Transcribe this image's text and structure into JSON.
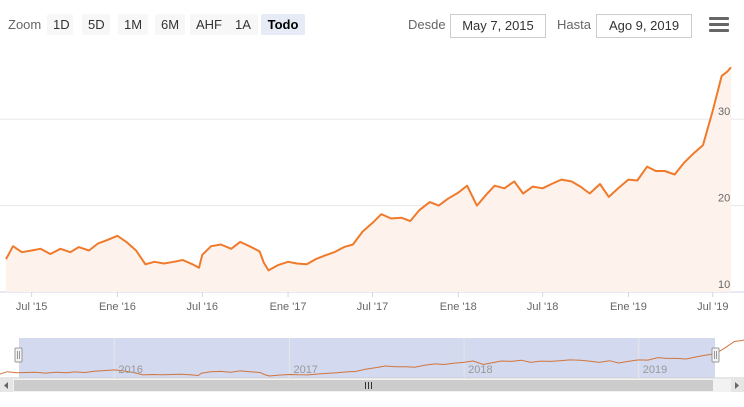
{
  "toolbar": {
    "zoom_label": "Zoom",
    "zoom_buttons": [
      "1D",
      "5D",
      "1M",
      "6M",
      "AHF",
      "1A",
      "Todo"
    ],
    "active_zoom": "Todo",
    "from_label": "Desde",
    "from_value": "May 7, 2015",
    "to_label": "Hasta",
    "to_value": "Ago 9, 2019",
    "menu_icon": "hamburger-menu-icon"
  },
  "colors": {
    "line": "#f07a2c",
    "area": "#fef3ec",
    "navigator_mask": "#d3d9ee",
    "navigator_line": "#d1753d",
    "grid": "#e6e6e6"
  },
  "chart_data": {
    "type": "line",
    "area_fill": true,
    "grid": true,
    "y_axis_side": "right",
    "ylim": [
      10,
      38
    ],
    "xlim": [
      "2015-05-07",
      "2019-08-09"
    ],
    "y_ticks": [
      "10",
      "20",
      "30"
    ],
    "x_ticks": [
      {
        "date": "2015-07-01",
        "label": "Jul '15"
      },
      {
        "date": "2016-01-01",
        "label": "Ene '16"
      },
      {
        "date": "2016-07-01",
        "label": "Jul '16"
      },
      {
        "date": "2017-01-01",
        "label": "Ene '17"
      },
      {
        "date": "2017-07-01",
        "label": "Jul '17"
      },
      {
        "date": "2018-01-01",
        "label": "Ene '18"
      },
      {
        "date": "2018-07-01",
        "label": "Jul '18"
      },
      {
        "date": "2019-01-01",
        "label": "Ene '19"
      },
      {
        "date": "2019-07-01",
        "label": "Jul '19"
      }
    ],
    "navigator_ticks": [
      {
        "date": "2016-01-01",
        "label": "2016"
      },
      {
        "date": "2017-01-01",
        "label": "2017"
      },
      {
        "date": "2018-01-01",
        "label": "2018"
      },
      {
        "date": "2019-01-01",
        "label": "2019"
      }
    ],
    "x": [
      "2015-05-07",
      "2015-05-22",
      "2015-06-10",
      "2015-07-01",
      "2015-07-20",
      "2015-08-10",
      "2015-09-01",
      "2015-09-22",
      "2015-10-10",
      "2015-11-01",
      "2015-11-20",
      "2015-12-10",
      "2016-01-01",
      "2016-01-20",
      "2016-02-10",
      "2016-03-01",
      "2016-03-20",
      "2016-04-10",
      "2016-05-01",
      "2016-05-20",
      "2016-06-10",
      "2016-06-24",
      "2016-07-01",
      "2016-07-20",
      "2016-08-10",
      "2016-09-01",
      "2016-09-20",
      "2016-10-10",
      "2016-11-01",
      "2016-11-10",
      "2016-11-20",
      "2016-12-10",
      "2017-01-01",
      "2017-01-20",
      "2017-02-10",
      "2017-03-01",
      "2017-03-20",
      "2017-04-10",
      "2017-05-01",
      "2017-05-20",
      "2017-06-10",
      "2017-07-01",
      "2017-07-20",
      "2017-08-10",
      "2017-09-01",
      "2017-09-20",
      "2017-10-10",
      "2017-11-01",
      "2017-11-20",
      "2017-12-10",
      "2018-01-01",
      "2018-01-20",
      "2018-02-10",
      "2018-03-01",
      "2018-03-20",
      "2018-04-10",
      "2018-05-01",
      "2018-05-20",
      "2018-06-10",
      "2018-07-01",
      "2018-07-20",
      "2018-08-10",
      "2018-09-01",
      "2018-09-20",
      "2018-10-10",
      "2018-11-01",
      "2018-11-20",
      "2018-12-10",
      "2019-01-01",
      "2019-01-20",
      "2019-02-10",
      "2019-03-01",
      "2019-03-20",
      "2019-04-10",
      "2019-05-01",
      "2019-05-20",
      "2019-06-10",
      "2019-07-01",
      "2019-07-20",
      "2019-08-01",
      "2019-08-09"
    ],
    "series": [
      {
        "values": [
          13.8,
          15.3,
          14.6,
          14.8,
          15.0,
          14.4,
          15.0,
          14.6,
          15.2,
          14.8,
          15.6,
          16.0,
          16.5,
          15.8,
          14.8,
          13.2,
          13.5,
          13.3,
          13.5,
          13.7,
          13.2,
          12.8,
          14.3,
          15.3,
          15.5,
          15.0,
          15.8,
          15.3,
          14.7,
          13.4,
          12.5,
          13.1,
          13.5,
          13.3,
          13.2,
          13.8,
          14.2,
          14.6,
          15.2,
          15.5,
          17.0,
          18.0,
          19.0,
          18.5,
          18.6,
          18.2,
          19.5,
          20.4,
          20.0,
          20.8,
          21.5,
          22.3,
          20.0,
          21.2,
          22.3,
          22.0,
          22.8,
          21.4,
          22.2,
          22.0,
          22.5,
          23.0,
          22.8,
          22.2,
          21.4,
          22.5,
          21.0,
          22.0,
          23.0,
          22.9,
          24.5,
          24.0,
          24.0,
          23.6,
          25.0,
          26.0,
          27.0,
          31.0,
          35.0,
          35.5,
          36.0
        ]
      }
    ]
  }
}
